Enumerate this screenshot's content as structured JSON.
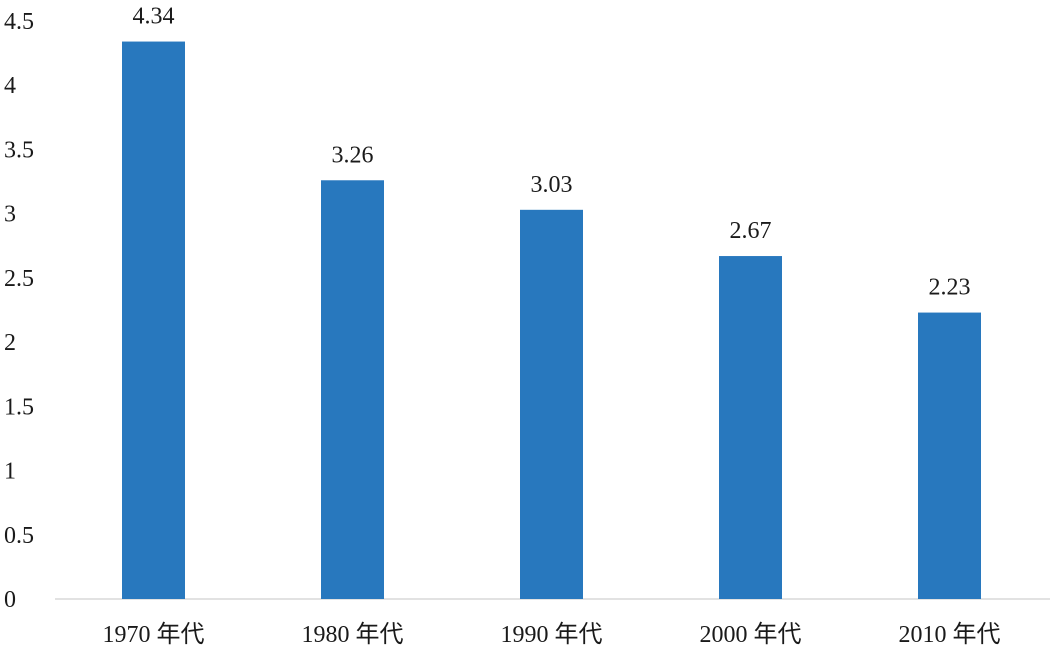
{
  "chart_data": {
    "type": "bar",
    "title": "",
    "xlabel": "",
    "ylabel": "",
    "categories": [
      "1970 年代",
      "1980 年代",
      "1990 年代",
      "2000 年代",
      "2010 年代"
    ],
    "values": [
      4.34,
      3.26,
      3.03,
      2.67,
      2.23
    ],
    "data_labels": [
      "4.34",
      "3.26",
      "3.03",
      "2.67",
      "2.23"
    ],
    "ylim": [
      0,
      4.5
    ],
    "yticks": [
      "0",
      "0.5",
      "1",
      "1.5",
      "2",
      "2.5",
      "3",
      "3.5",
      "4",
      "4.5"
    ],
    "grid": false,
    "legend": "none",
    "bar_color": "#2878be"
  }
}
